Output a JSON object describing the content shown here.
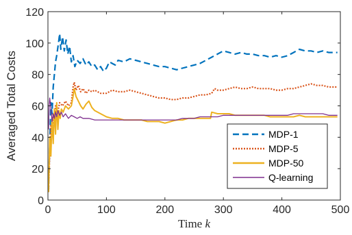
{
  "chart_data": {
    "type": "line",
    "title": "",
    "xlabel": "Time ",
    "xlabel_var": "k",
    "ylabel": "Averaged Total Costs",
    "xlim": [
      0,
      500
    ],
    "ylim": [
      0,
      120
    ],
    "xticks": [
      0,
      100,
      200,
      300,
      400,
      500
    ],
    "yticks": [
      0,
      20,
      40,
      60,
      80,
      100,
      120
    ],
    "grid": false,
    "legend_position": "lower-right",
    "series": [
      {
        "name": "MDP-1",
        "color": "#0072BD",
        "dash": "dashed",
        "points": [
          [
            1,
            5
          ],
          [
            3,
            35
          ],
          [
            5,
            62
          ],
          [
            7,
            55
          ],
          [
            9,
            72
          ],
          [
            11,
            80
          ],
          [
            13,
            88
          ],
          [
            15,
            92
          ],
          [
            18,
            100
          ],
          [
            20,
            106
          ],
          [
            22,
            96
          ],
          [
            25,
            104
          ],
          [
            28,
            95
          ],
          [
            31,
            102
          ],
          [
            34,
            93
          ],
          [
            37,
            98
          ],
          [
            40,
            88
          ],
          [
            43,
            92
          ],
          [
            46,
            85
          ],
          [
            50,
            89
          ],
          [
            55,
            87
          ],
          [
            60,
            90
          ],
          [
            65,
            86
          ],
          [
            70,
            88
          ],
          [
            75,
            85
          ],
          [
            80,
            86
          ],
          [
            85,
            83
          ],
          [
            90,
            85
          ],
          [
            95,
            82
          ],
          [
            100,
            84
          ],
          [
            105,
            88
          ],
          [
            110,
            87
          ],
          [
            115,
            86
          ],
          [
            120,
            89
          ],
          [
            130,
            88
          ],
          [
            140,
            90
          ],
          [
            150,
            89
          ],
          [
            160,
            88
          ],
          [
            170,
            87
          ],
          [
            180,
            86
          ],
          [
            190,
            85
          ],
          [
            200,
            85
          ],
          [
            210,
            84
          ],
          [
            220,
            83
          ],
          [
            230,
            84
          ],
          [
            240,
            85
          ],
          [
            250,
            86
          ],
          [
            260,
            87
          ],
          [
            270,
            89
          ],
          [
            280,
            91
          ],
          [
            290,
            93
          ],
          [
            300,
            95
          ],
          [
            310,
            94
          ],
          [
            320,
            93
          ],
          [
            330,
            94
          ],
          [
            340,
            93
          ],
          [
            350,
            93
          ],
          [
            360,
            92
          ],
          [
            370,
            92
          ],
          [
            380,
            91
          ],
          [
            390,
            92
          ],
          [
            400,
            91
          ],
          [
            410,
            92
          ],
          [
            420,
            94
          ],
          [
            430,
            96
          ],
          [
            440,
            95
          ],
          [
            450,
            95
          ],
          [
            460,
            94
          ],
          [
            470,
            95
          ],
          [
            480,
            94
          ],
          [
            490,
            94
          ],
          [
            495,
            94
          ]
        ]
      },
      {
        "name": "MDP-5",
        "color": "#D95319",
        "dash": "dotted",
        "points": [
          [
            1,
            5
          ],
          [
            3,
            30
          ],
          [
            5,
            48
          ],
          [
            7,
            42
          ],
          [
            9,
            55
          ],
          [
            11,
            50
          ],
          [
            13,
            60
          ],
          [
            16,
            55
          ],
          [
            20,
            62
          ],
          [
            25,
            60
          ],
          [
            30,
            63
          ],
          [
            35,
            60
          ],
          [
            40,
            62
          ],
          [
            43,
            72
          ],
          [
            45,
            75
          ],
          [
            48,
            70
          ],
          [
            52,
            73
          ],
          [
            56,
            69
          ],
          [
            60,
            71
          ],
          [
            65,
            68
          ],
          [
            70,
            70
          ],
          [
            75,
            69
          ],
          [
            80,
            70
          ],
          [
            90,
            68
          ],
          [
            100,
            68
          ],
          [
            110,
            70
          ],
          [
            120,
            69
          ],
          [
            130,
            69
          ],
          [
            140,
            70
          ],
          [
            150,
            69
          ],
          [
            160,
            68
          ],
          [
            170,
            67
          ],
          [
            180,
            66
          ],
          [
            190,
            65
          ],
          [
            200,
            65
          ],
          [
            210,
            64
          ],
          [
            220,
            64
          ],
          [
            230,
            65
          ],
          [
            240,
            65
          ],
          [
            250,
            66
          ],
          [
            260,
            67
          ],
          [
            270,
            67
          ],
          [
            280,
            68
          ],
          [
            285,
            71
          ],
          [
            290,
            70
          ],
          [
            300,
            70
          ],
          [
            310,
            71
          ],
          [
            320,
            72
          ],
          [
            330,
            71
          ],
          [
            340,
            71
          ],
          [
            350,
            72
          ],
          [
            360,
            71
          ],
          [
            370,
            71
          ],
          [
            380,
            71
          ],
          [
            390,
            70
          ],
          [
            400,
            70
          ],
          [
            410,
            71
          ],
          [
            420,
            71
          ],
          [
            430,
            72
          ],
          [
            440,
            73
          ],
          [
            450,
            74
          ],
          [
            460,
            73
          ],
          [
            470,
            73
          ],
          [
            480,
            72
          ],
          [
            490,
            72
          ],
          [
            495,
            72
          ]
        ]
      },
      {
        "name": "MDP-50",
        "color": "#EDB120",
        "dash": "solid",
        "points": [
          [
            1,
            5
          ],
          [
            3,
            40
          ],
          [
            5,
            28
          ],
          [
            7,
            52
          ],
          [
            9,
            36
          ],
          [
            11,
            58
          ],
          [
            13,
            42
          ],
          [
            15,
            62
          ],
          [
            17,
            45
          ],
          [
            19,
            57
          ],
          [
            21,
            52
          ],
          [
            23,
            58
          ],
          [
            26,
            56
          ],
          [
            30,
            60
          ],
          [
            35,
            58
          ],
          [
            40,
            60
          ],
          [
            43,
            66
          ],
          [
            45,
            71
          ],
          [
            48,
            66
          ],
          [
            52,
            63
          ],
          [
            56,
            60
          ],
          [
            60,
            58
          ],
          [
            65,
            61
          ],
          [
            70,
            63
          ],
          [
            75,
            59
          ],
          [
            80,
            57
          ],
          [
            90,
            55
          ],
          [
            100,
            53
          ],
          [
            110,
            52
          ],
          [
            120,
            52
          ],
          [
            130,
            51
          ],
          [
            140,
            51
          ],
          [
            150,
            51
          ],
          [
            160,
            51
          ],
          [
            170,
            50
          ],
          [
            180,
            50
          ],
          [
            190,
            50
          ],
          [
            200,
            49
          ],
          [
            210,
            50
          ],
          [
            220,
            51
          ],
          [
            230,
            51
          ],
          [
            240,
            52
          ],
          [
            250,
            52
          ],
          [
            260,
            52
          ],
          [
            270,
            52
          ],
          [
            278,
            52
          ],
          [
            280,
            56
          ],
          [
            290,
            55
          ],
          [
            300,
            55
          ],
          [
            310,
            55
          ],
          [
            320,
            54
          ],
          [
            330,
            54
          ],
          [
            340,
            54
          ],
          [
            350,
            54
          ],
          [
            360,
            54
          ],
          [
            370,
            54
          ],
          [
            380,
            53
          ],
          [
            390,
            53
          ],
          [
            400,
            53
          ],
          [
            410,
            53
          ],
          [
            420,
            53
          ],
          [
            430,
            54
          ],
          [
            440,
            53
          ],
          [
            450,
            53
          ],
          [
            460,
            53
          ],
          [
            470,
            53
          ],
          [
            480,
            53
          ],
          [
            490,
            53
          ],
          [
            495,
            53
          ]
        ]
      },
      {
        "name": "Q-learning",
        "color": "#7E2F8E",
        "dash": "solid",
        "points": [
          [
            1,
            45
          ],
          [
            2,
            60
          ],
          [
            3,
            65
          ],
          [
            4,
            62
          ],
          [
            5,
            58
          ],
          [
            7,
            50
          ],
          [
            9,
            55
          ],
          [
            11,
            52
          ],
          [
            13,
            56
          ],
          [
            15,
            53
          ],
          [
            17,
            57
          ],
          [
            20,
            54
          ],
          [
            23,
            56
          ],
          [
            26,
            53
          ],
          [
            30,
            55
          ],
          [
            35,
            52
          ],
          [
            40,
            54
          ],
          [
            45,
            53
          ],
          [
            50,
            52
          ],
          [
            55,
            53
          ],
          [
            60,
            52
          ],
          [
            70,
            52
          ],
          [
            80,
            51
          ],
          [
            90,
            51
          ],
          [
            100,
            51
          ],
          [
            110,
            51
          ],
          [
            120,
            51
          ],
          [
            130,
            51
          ],
          [
            140,
            51
          ],
          [
            150,
            51
          ],
          [
            160,
            51
          ],
          [
            170,
            51
          ],
          [
            180,
            51
          ],
          [
            190,
            51
          ],
          [
            200,
            51
          ],
          [
            210,
            51
          ],
          [
            220,
            51
          ],
          [
            230,
            52
          ],
          [
            240,
            52
          ],
          [
            250,
            52
          ],
          [
            260,
            53
          ],
          [
            270,
            53
          ],
          [
            280,
            53
          ],
          [
            290,
            53
          ],
          [
            300,
            54
          ],
          [
            310,
            54
          ],
          [
            320,
            54
          ],
          [
            330,
            54
          ],
          [
            340,
            54
          ],
          [
            350,
            54
          ],
          [
            360,
            54
          ],
          [
            370,
            54
          ],
          [
            380,
            54
          ],
          [
            390,
            54
          ],
          [
            400,
            54
          ],
          [
            410,
            54
          ],
          [
            420,
            55
          ],
          [
            430,
            55
          ],
          [
            440,
            55
          ],
          [
            450,
            55
          ],
          [
            460,
            55
          ],
          [
            470,
            55
          ],
          [
            480,
            54
          ],
          [
            490,
            54
          ],
          [
            495,
            54
          ]
        ]
      }
    ]
  }
}
